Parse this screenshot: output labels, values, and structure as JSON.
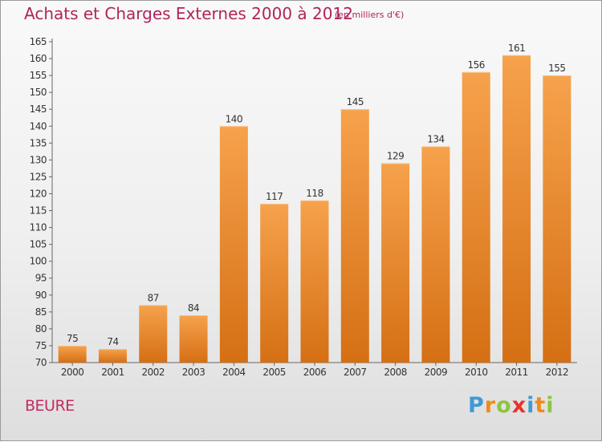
{
  "title": "Achats et Charges Externes 2000 à 2012",
  "subtitle": "(en milliers d'€)",
  "place": "BEURE",
  "logo": {
    "letters": [
      "P",
      "r",
      "o",
      "x",
      "i",
      "t",
      "i"
    ],
    "colors": [
      "#3d9bd6",
      "#f08a1d",
      "#8cc63f",
      "#e8332c",
      "#3d9bd6",
      "#f08a1d",
      "#8cc63f"
    ]
  },
  "colors": {
    "bar_top": "#f6a24c",
    "bar_bottom": "#d56f14",
    "text": "#333333",
    "title": "#b0245a"
  },
  "chart_data": {
    "type": "bar",
    "categories": [
      "2000",
      "2001",
      "2002",
      "2003",
      "2004",
      "2005",
      "2006",
      "2007",
      "2008",
      "2009",
      "2010",
      "2011",
      "2012"
    ],
    "values": [
      75,
      74,
      87,
      84,
      140,
      117,
      118,
      145,
      129,
      134,
      156,
      161,
      155
    ],
    "ylim": [
      70,
      165
    ],
    "yticks": [
      70,
      75,
      80,
      85,
      90,
      95,
      100,
      105,
      110,
      115,
      120,
      125,
      130,
      135,
      140,
      145,
      150,
      155,
      160,
      165
    ],
    "grid": false
  }
}
